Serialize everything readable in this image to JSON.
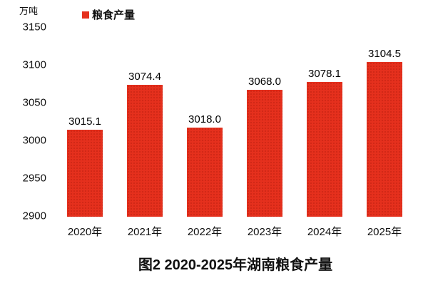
{
  "chart_data": {
    "type": "bar",
    "title": "图2 2020-2025年湖南粮食产量",
    "unit_label": "万吨",
    "legend": {
      "label": "粮食产量",
      "swatch_color": "#e5301d",
      "position": "top"
    },
    "categories": [
      "2020年",
      "2021年",
      "2022年",
      "2023年",
      "2024年",
      "2025年"
    ],
    "values": [
      3015.1,
      3074.4,
      3018.0,
      3068.0,
      3078.1,
      3104.5
    ],
    "value_labels": [
      "3015.1",
      "3074.4",
      "3018.0",
      "3068.0",
      "3078.1",
      "3104.5"
    ],
    "y_ticks": [
      3150,
      3100,
      3050,
      3000,
      2950,
      2900
    ],
    "ylim": [
      2900,
      3150
    ],
    "xlabel": "",
    "ylabel": "万吨",
    "grid": false,
    "bar_color": "#e5301d",
    "text_color": "#111111",
    "background_color": "#ffffff"
  }
}
